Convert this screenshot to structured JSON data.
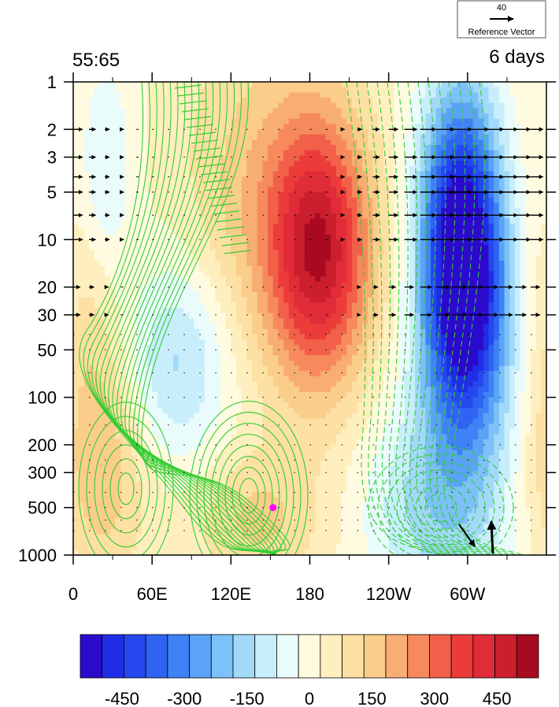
{
  "chart_data": {
    "type": "heatmap",
    "title_left": "55:65",
    "title_right": "6 days",
    "reference_vector": {
      "magnitude": "40",
      "label": "Reference Vector"
    },
    "x_ticks": [
      "0",
      "60E",
      "120E",
      "180",
      "120W",
      "60W"
    ],
    "x_tick_lon": [
      0,
      60,
      120,
      180,
      240,
      300
    ],
    "xlim_lon": [
      0,
      360
    ],
    "y_axis": {
      "scale": "log",
      "reversed": true,
      "range": [
        1,
        1000
      ]
    },
    "y_ticks": [
      "1",
      "2",
      "3",
      "5",
      "10",
      "20",
      "30",
      "50",
      "100",
      "200",
      "300",
      "500",
      "1000"
    ],
    "y_tick_values": [
      1,
      2,
      3,
      5,
      10,
      20,
      30,
      50,
      100,
      200,
      300,
      500,
      1000
    ],
    "colorbar": {
      "labels": [
        "-450",
        "-300",
        "-150",
        "0",
        "150",
        "300",
        "450"
      ],
      "label_values": [
        -450,
        -300,
        -150,
        0,
        150,
        300,
        450
      ],
      "min": -550,
      "max": 550,
      "step": 50,
      "colors": [
        "#2b0acc",
        "#1f2ee6",
        "#2548ee",
        "#2f64f2",
        "#3f82f6",
        "#5aa3f6",
        "#7cc1f7",
        "#a2d9f9",
        "#c8eefb",
        "#e9fbfb",
        "#fffbe0",
        "#ffefbf",
        "#fde0a3",
        "#fbcd8a",
        "#f8ad72",
        "#f78a5c",
        "#f2604a",
        "#ec3c3a",
        "#e02c38",
        "#cc1f2d",
        "#a80a22"
      ]
    },
    "shading_centers": [
      {
        "lon": 188,
        "p": 12,
        "value": 420,
        "sigma_lon": 28,
        "sigma_logp": 0.6
      },
      {
        "lon": 295,
        "p": 8,
        "value": -500,
        "sigma_lon": 22,
        "sigma_logp": 0.65
      },
      {
        "lon": 300,
        "p": 40,
        "value": -330,
        "sigma_lon": 24,
        "sigma_logp": 0.55
      },
      {
        "lon": 280,
        "p": 500,
        "value": -180,
        "sigma_lon": 40,
        "sigma_logp": 0.5
      },
      {
        "lon": 80,
        "p": 60,
        "value": -170,
        "sigma_lon": 30,
        "sigma_logp": 0.45
      },
      {
        "lon": 25,
        "p": 4,
        "value": -120,
        "sigma_lon": 15,
        "sigma_logp": 0.5
      },
      {
        "lon": 140,
        "p": 5,
        "value": 120,
        "sigma_lon": 40,
        "sigma_logp": 0.8
      },
      {
        "lon": 20,
        "p": 300,
        "value": 140,
        "sigma_lon": 25,
        "sigma_logp": 0.5
      },
      {
        "lon": 140,
        "p": 600,
        "value": 110,
        "sigma_lon": 35,
        "sigma_logp": 0.3
      },
      {
        "lon": 15,
        "p": 30,
        "value": 80,
        "sigma_lon": 20,
        "sigma_logp": 0.6
      }
    ],
    "marker": {
      "lon": 152,
      "p": 500,
      "color": "#ff00ff"
    },
    "contour_color": "#33cc33",
    "vector_rows_p": [
      2,
      3,
      4,
      5,
      7,
      10,
      20,
      30,
      40,
      50,
      70,
      100,
      150,
      200,
      250,
      300,
      400,
      500,
      600,
      700
    ]
  }
}
